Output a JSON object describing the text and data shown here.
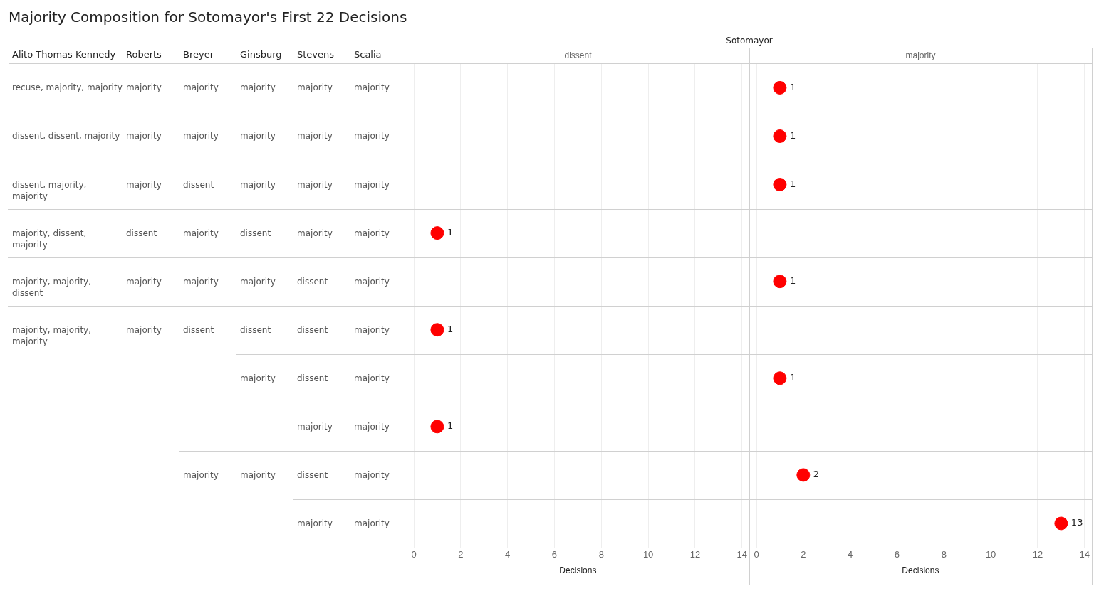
{
  "chart_data": [
    {
      "type": "other",
      "title": "Majority Composition for Sotomayor's First 22 Decisions",
      "categories": [
        "Alito Thomas Kennedy",
        "Roberts",
        "Breyer",
        "Ginsburg",
        "Stevens",
        "Scalia"
      ],
      "cells": [
        [
          "recuse, majority, majority",
          "majority",
          "majority",
          "majority",
          "majority",
          "majority"
        ],
        [
          "dissent, dissent, majority",
          "majority",
          "majority",
          "majority",
          "majority",
          "majority"
        ],
        [
          "dissent, majority, majority",
          "majority",
          "dissent",
          "majority",
          "majority",
          "majority"
        ],
        [
          "majority, dissent, majority",
          "dissent",
          "majority",
          "dissent",
          "majority",
          "majority"
        ],
        [
          "majority, majority, dissent",
          "majority",
          "majority",
          "majority",
          "dissent",
          "majority"
        ],
        [
          "majority, majority, majority",
          "majority",
          "dissent",
          "dissent",
          "dissent",
          "majority"
        ],
        [
          null,
          null,
          null,
          "majority",
          "dissent",
          "majority"
        ],
        [
          null,
          null,
          null,
          null,
          "majority",
          "majority"
        ],
        [
          null,
          null,
          "majority",
          "majority",
          "dissent",
          "majority"
        ],
        [
          null,
          null,
          null,
          null,
          "majority",
          "majority"
        ]
      ]
    },
    {
      "type": "scatter",
      "orientation": "horizontal",
      "title": "dissent",
      "annotations": [
        "Sotomayor"
      ],
      "categories": [
        null,
        null,
        null,
        null,
        null,
        null,
        null,
        null,
        null,
        null
      ],
      "series": [
        {
          "color": "#ff0000",
          "values": [
            null,
            null,
            null,
            1,
            null,
            1,
            null,
            1,
            null,
            null
          ]
        }
      ],
      "xlim": [
        0,
        14
      ],
      "xticks": [
        0,
        2,
        4,
        6,
        8,
        10,
        12,
        14
      ],
      "xlabel": "Decisions",
      "grid": "x",
      "data_labels": true,
      "marker": "circle"
    },
    {
      "type": "scatter",
      "orientation": "horizontal",
      "title": "majority",
      "categories": [
        null,
        null,
        null,
        null,
        null,
        null,
        null,
        null,
        null,
        null
      ],
      "series": [
        {
          "color": "#ff0000",
          "values": [
            1,
            1,
            1,
            null,
            1,
            null,
            1,
            null,
            2,
            13
          ]
        }
      ],
      "xlim": [
        0,
        14
      ],
      "xticks": [
        0,
        2,
        4,
        6,
        8,
        10,
        12,
        14
      ],
      "xlabel": "Decisions",
      "grid": "x",
      "data_labels": true,
      "marker": "circle"
    }
  ]
}
